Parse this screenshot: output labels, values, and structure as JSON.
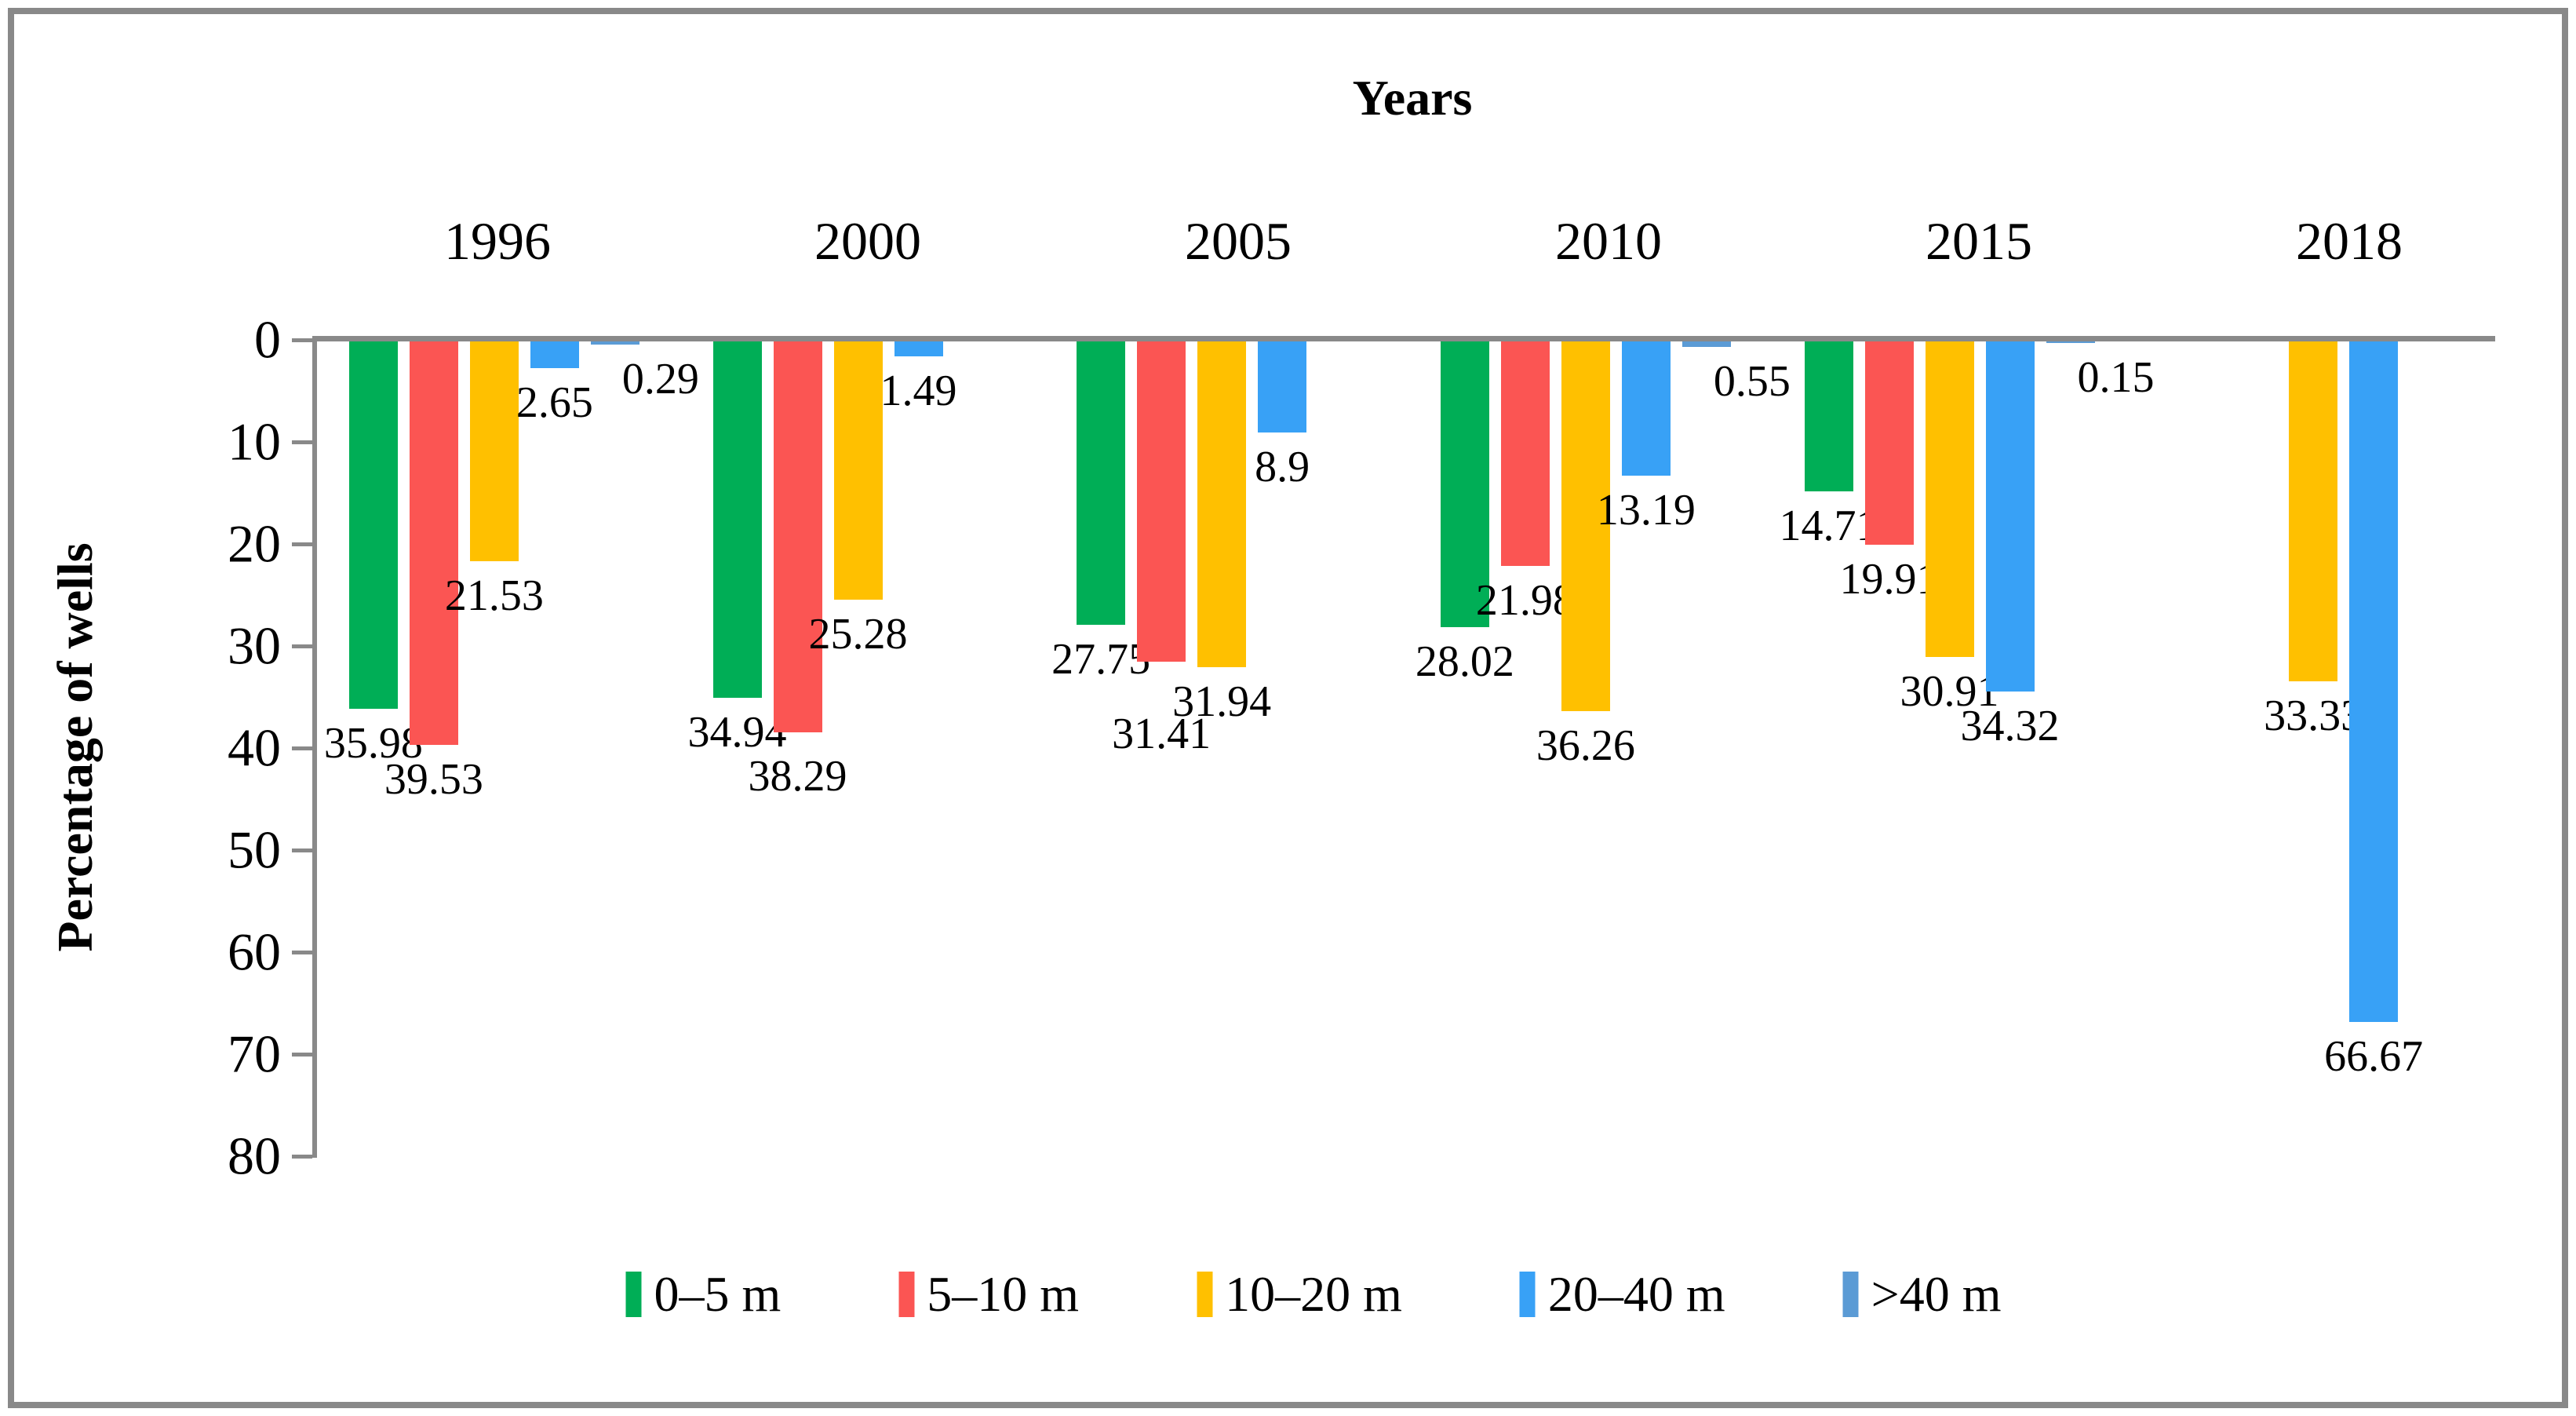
{
  "chart_data": {
    "type": "bar",
    "orientation": "vertical-downward",
    "title": "Years",
    "ylabel": "Percentage of wells",
    "categories": [
      "1996",
      "2000",
      "2005",
      "2010",
      "2015",
      "2018"
    ],
    "series": [
      {
        "name": "0–5 m",
        "color": "#00AE56",
        "values": [
          35.98,
          34.94,
          27.75,
          28.02,
          14.71,
          null
        ]
      },
      {
        "name": "5–10 m",
        "color": "#FB5553",
        "values": [
          39.53,
          38.29,
          31.41,
          21.98,
          19.91,
          null
        ]
      },
      {
        "name": "10–20 m",
        "color": "#FFC000",
        "values": [
          21.53,
          25.28,
          31.94,
          36.26,
          30.91,
          33.33
        ]
      },
      {
        "name": "20–40 m",
        "color": "#38A1F6",
        "values": [
          2.65,
          1.49,
          8.9,
          13.19,
          34.32,
          66.67
        ]
      },
      {
        "name": ">40 m",
        "color": "#5B9BD5",
        "values": [
          0.29,
          null,
          null,
          0.55,
          0.15,
          null
        ]
      }
    ],
    "y_axis": {
      "min": 0,
      "max": 80,
      "step": 10,
      "ticks": [
        0,
        10,
        20,
        30,
        40,
        50,
        60,
        70,
        80
      ],
      "direction": "down"
    },
    "legend_position": "bottom",
    "grid": false,
    "axis_color": "#898989",
    "text_color": "#000000",
    "background": "#FFFFFF"
  }
}
